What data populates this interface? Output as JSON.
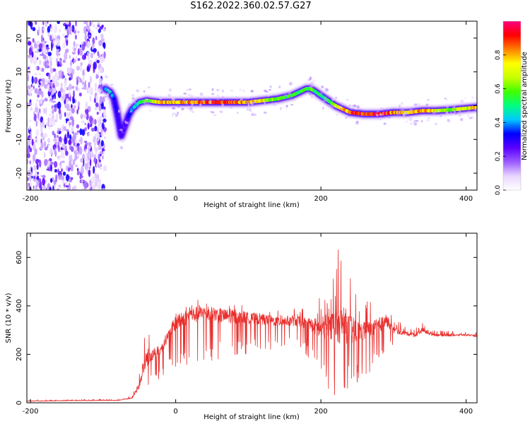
{
  "title": "S162.2022.360.02.57.G27",
  "chart_data": [
    {
      "type": "heatmap",
      "panel": "top",
      "xlabel": "Height of straight line (km)",
      "ylabel": "Frequency (Hz)",
      "xlim": [
        -205,
        415
      ],
      "ylim": [
        -25,
        25
      ],
      "xticks": [
        -200,
        0,
        200,
        400
      ],
      "yticks": [
        -20,
        -10,
        0,
        10,
        20
      ],
      "colorbar": {
        "label": "Normalized spectral amplitude",
        "ticks": [
          0.0,
          0.2,
          0.4,
          0.6,
          0.8
        ],
        "colormap": [
          "#ffffff",
          "#e9d6ff",
          "#9b5cff",
          "#5a00ff",
          "#0000ff",
          "#00c8ff",
          "#00ff80",
          "#40ff00",
          "#c8ff00",
          "#ffff00",
          "#ff8000",
          "#ff0000",
          "#ff0080"
        ]
      },
      "noise_region": {
        "x": [
          -205,
          -97
        ],
        "y": [
          -25,
          25
        ]
      },
      "ridge": {
        "x": [
          -97,
          -90,
          -85,
          -80,
          -75,
          -70,
          -65,
          -60,
          -55,
          -50,
          -40,
          -30,
          -20,
          0,
          20,
          50,
          80,
          100,
          120,
          140,
          150,
          160,
          170,
          180,
          185,
          190,
          200,
          210,
          220,
          230,
          240,
          260,
          280,
          300,
          320,
          340,
          360,
          380,
          400,
          415
        ],
        "freq": [
          5,
          4,
          2,
          -3,
          -9,
          -6,
          -3,
          -1,
          0,
          1,
          1.5,
          1.2,
          1,
          1,
          1,
          1,
          1,
          1,
          1.5,
          2,
          2.5,
          3,
          4,
          5,
          5,
          4.5,
          3,
          1.5,
          0,
          -1,
          -2,
          -2.5,
          -2.5,
          -2,
          -2,
          -1.5,
          -1.5,
          -1.2,
          -0.8,
          -0.5
        ],
        "amplitude": [
          0.4,
          0.45,
          0.35,
          0.3,
          0.25,
          0.25,
          0.3,
          0.4,
          0.45,
          0.5,
          0.6,
          0.7,
          0.8,
          0.8,
          0.85,
          0.9,
          0.9,
          0.8,
          0.75,
          0.6,
          0.6,
          0.55,
          0.55,
          0.6,
          0.6,
          0.55,
          0.5,
          0.55,
          0.7,
          0.8,
          0.9,
          0.95,
          0.95,
          0.85,
          0.75,
          0.85,
          0.7,
          0.6,
          0.75,
          0.8
        ]
      }
    },
    {
      "type": "line",
      "panel": "bottom",
      "xlabel": "Height of straight line (km)",
      "ylabel": "SNR (10 * v/v)",
      "xlim": [
        -205,
        415
      ],
      "ylim": [
        0,
        700
      ],
      "xticks": [
        -200,
        0,
        200,
        400
      ],
      "yticks": [
        0,
        200,
        400,
        600
      ],
      "color": "#e8302e",
      "envelope": {
        "x": [
          -205,
          -150,
          -80,
          -60,
          -50,
          -45,
          -40,
          -35,
          -20,
          -10,
          0,
          20,
          40,
          60,
          80,
          100,
          120,
          140,
          160,
          180,
          190,
          200,
          210,
          220,
          230,
          240,
          250,
          260,
          270,
          280,
          290,
          300,
          310,
          320,
          330,
          340,
          350,
          360,
          380,
          400,
          415
        ],
        "upper": [
          12,
          14,
          15,
          30,
          120,
          260,
          300,
          320,
          250,
          300,
          380,
          420,
          430,
          420,
          410,
          400,
          390,
          380,
          390,
          390,
          400,
          470,
          520,
          600,
          690,
          560,
          480,
          430,
          420,
          420,
          400,
          350,
          330,
          320,
          310,
          330,
          310,
          300,
          295,
          295,
          290
        ],
        "lower": [
          2,
          3,
          5,
          10,
          25,
          50,
          60,
          80,
          100,
          120,
          140,
          160,
          170,
          180,
          190,
          200,
          210,
          220,
          220,
          200,
          150,
          100,
          40,
          30,
          60,
          60,
          80,
          100,
          120,
          160,
          220,
          240,
          260,
          250,
          240,
          250,
          255,
          260,
          260,
          265,
          260
        ],
        "baseline": [
          7,
          9,
          10,
          20,
          70,
          140,
          180,
          190,
          220,
          280,
          330,
          360,
          370,
          360,
          355,
          350,
          345,
          335,
          340,
          330,
          320,
          300,
          330,
          310,
          330,
          300,
          290,
          300,
          300,
          320,
          340,
          300,
          290,
          285,
          280,
          300,
          285,
          280,
          278,
          280,
          275
        ]
      }
    }
  ]
}
